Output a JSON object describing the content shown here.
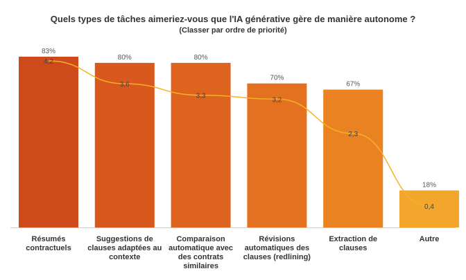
{
  "chart_data": {
    "type": "bar",
    "title": "Quels types de tâches aimeriez-vous que l'IA générative gère de manière autonome ?",
    "subtitle": "(Classer par ordre de priorité)",
    "categories": [
      "Résumés contractuels",
      "Suggestions de clauses adaptées au contexte",
      "Comparaison automatique avec des contrats similaires",
      "Révisions automatiques des clauses (redlining)",
      "Extraction de clauses",
      "Autre"
    ],
    "series": [
      {
        "type": "bar",
        "values": [
          83,
          80,
          80,
          70,
          67,
          18
        ],
        "labels": [
          "83%",
          "80%",
          "80%",
          "70%",
          "67%",
          "18%"
        ]
      },
      {
        "type": "line",
        "values": [
          4.2,
          3.6,
          3.3,
          3.2,
          2.3,
          0.4
        ],
        "labels": [
          "4,2",
          "3,6",
          "3,3",
          "3,2",
          "2,3",
          "0,4"
        ]
      }
    ],
    "ylim": [
      0,
      100
    ],
    "y2lim": [
      0,
      5
    ],
    "grid": false,
    "colors": {
      "bars": [
        "#cf4a1b",
        "#d9581d",
        "#de631f",
        "#e4711f",
        "#ea8221",
        "#f3a62c"
      ],
      "line": "#f5b225",
      "text": "#333333",
      "baseline": "#cccccc"
    }
  }
}
